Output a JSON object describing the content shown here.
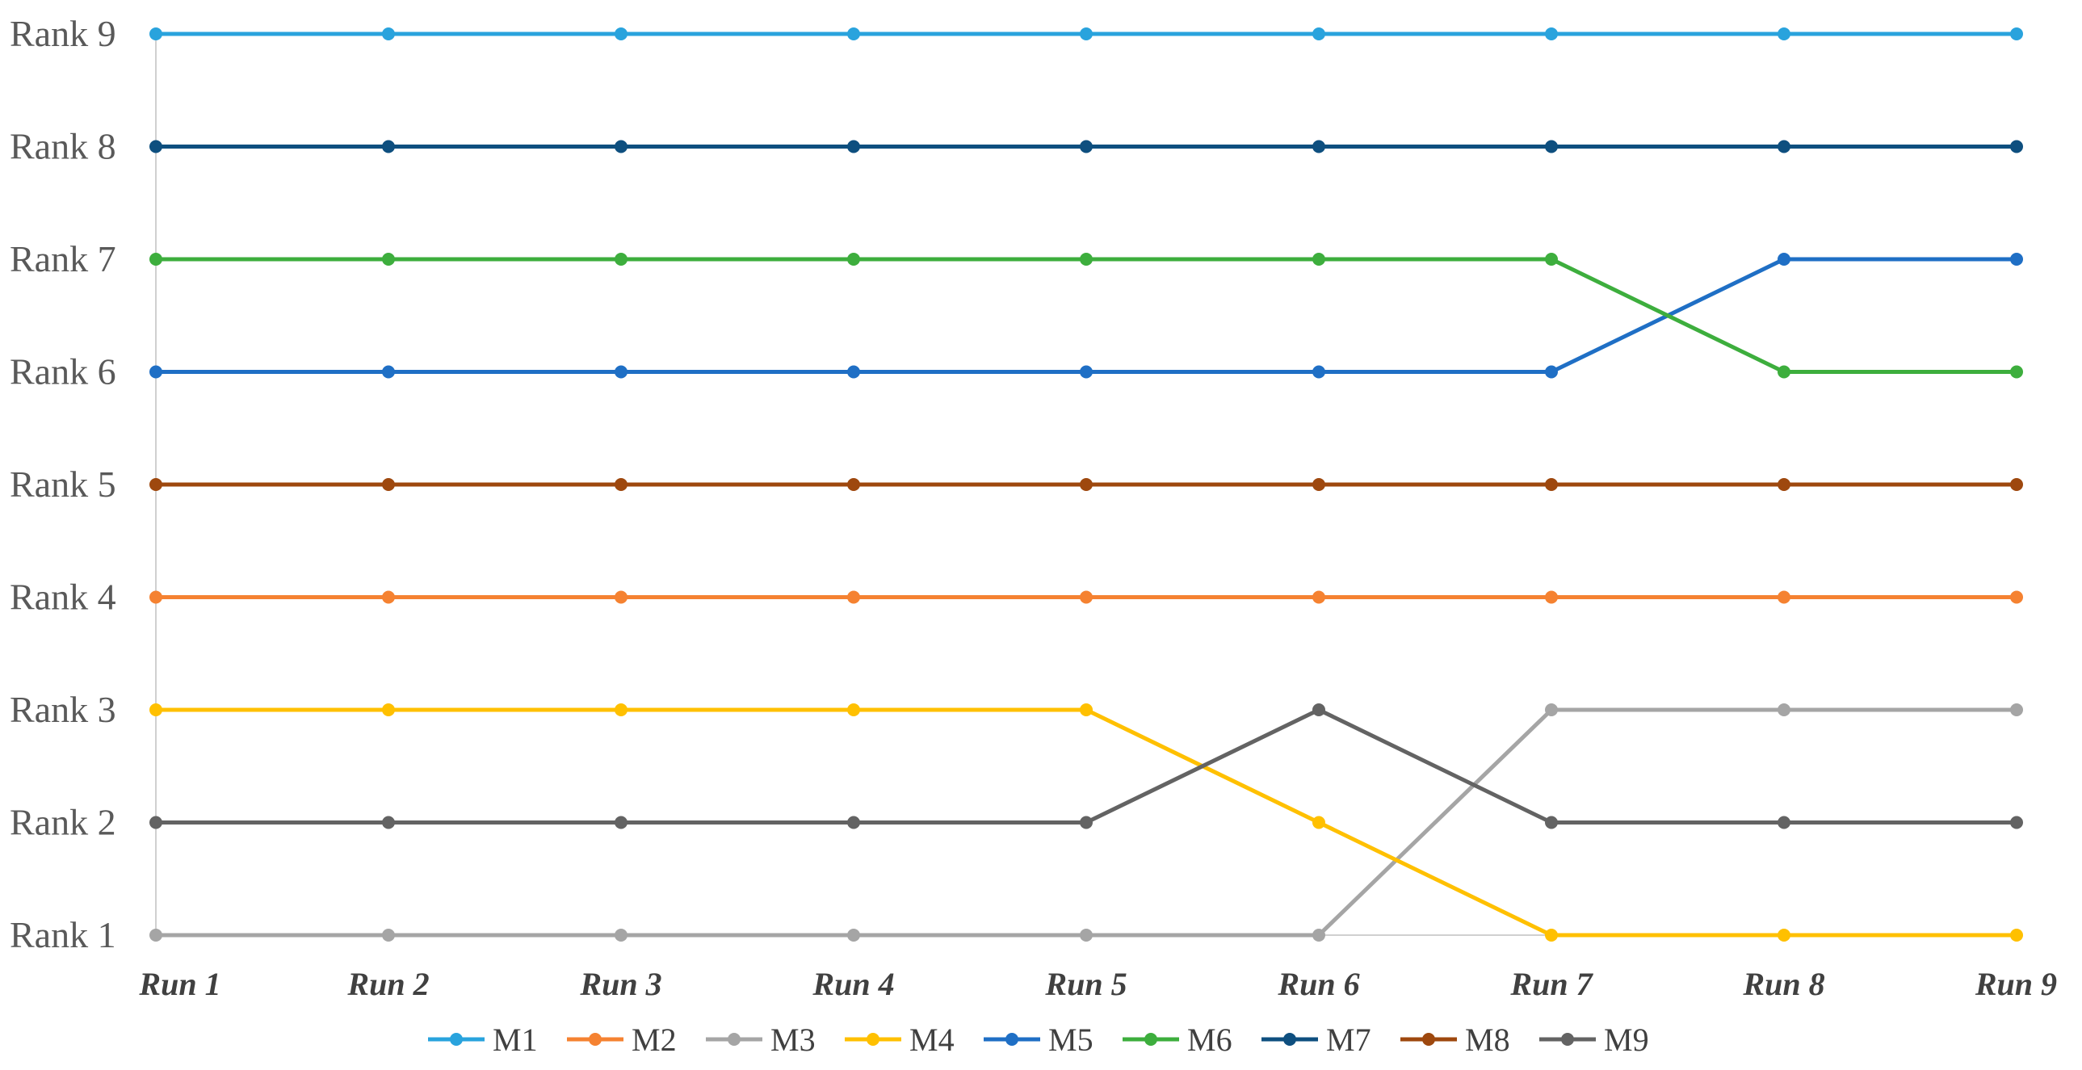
{
  "chart_data": {
    "type": "line",
    "title": "",
    "xlabel": "",
    "ylabel": "",
    "categories": [
      "Run 1",
      "Run 2",
      "Run 3",
      "Run 4",
      "Run 5",
      "Run 6",
      "Run 7",
      "Run 8",
      "Run 9"
    ],
    "y_tick_labels": [
      "Rank 1",
      "Rank 2",
      "Rank 3",
      "Rank 4",
      "Rank 5",
      "Rank 6",
      "Rank 7",
      "Rank 8",
      "Rank 9"
    ],
    "ylim": [
      1,
      9
    ],
    "grid": false,
    "legend_position": "bottom",
    "series": [
      {
        "name": "M1",
        "color": "#29A3DD",
        "values": [
          9,
          9,
          9,
          9,
          9,
          9,
          9,
          9,
          9
        ]
      },
      {
        "name": "M2",
        "color": "#F58231",
        "values": [
          4,
          4,
          4,
          4,
          4,
          4,
          4,
          4,
          4
        ]
      },
      {
        "name": "M3",
        "color": "#A5A5A5",
        "values": [
          1,
          1,
          1,
          1,
          1,
          1,
          3,
          3,
          3
        ]
      },
      {
        "name": "M4",
        "color": "#FFC000",
        "values": [
          3,
          3,
          3,
          3,
          3,
          2,
          1,
          1,
          1
        ]
      },
      {
        "name": "M5",
        "color": "#1F6FC5",
        "values": [
          6,
          6,
          6,
          6,
          6,
          6,
          6,
          7,
          7
        ]
      },
      {
        "name": "M6",
        "color": "#3DAE3D",
        "values": [
          7,
          7,
          7,
          7,
          7,
          7,
          7,
          6,
          6
        ]
      },
      {
        "name": "M7",
        "color": "#0E4F7F",
        "values": [
          8,
          8,
          8,
          8,
          8,
          8,
          8,
          8,
          8
        ]
      },
      {
        "name": "M8",
        "color": "#9E480E",
        "values": [
          5,
          5,
          5,
          5,
          5,
          5,
          5,
          5,
          5
        ]
      },
      {
        "name": "M9",
        "color": "#636363",
        "values": [
          2,
          2,
          2,
          2,
          2,
          3,
          2,
          2,
          2
        ]
      }
    ]
  }
}
